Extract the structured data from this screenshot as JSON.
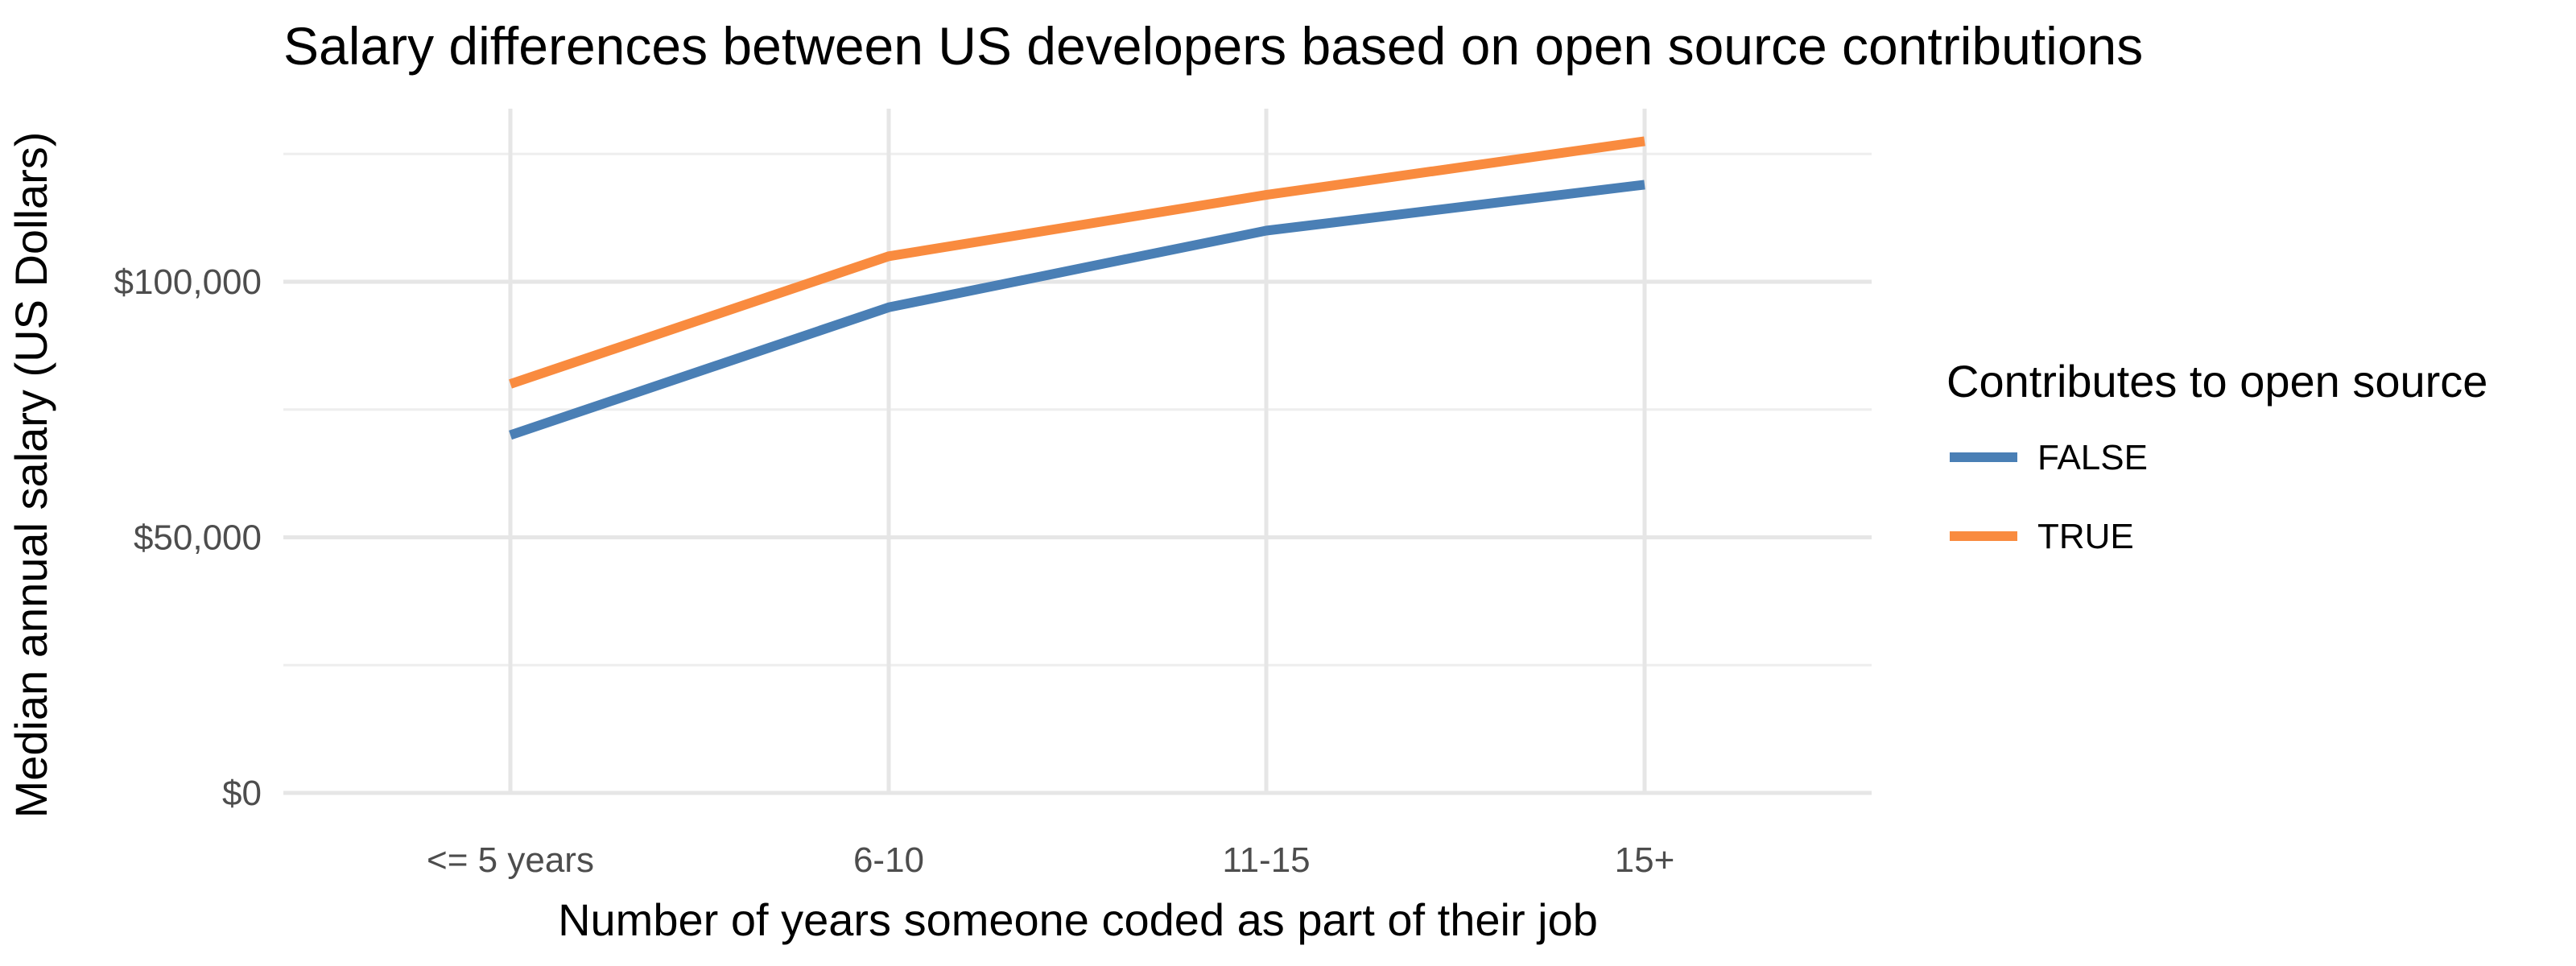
{
  "chart_data": {
    "type": "line",
    "title": "Salary differences between US developers based on open source contributions",
    "xlabel": "Number of years someone coded as part of their job",
    "ylabel": "Median annual salary (US Dollars)",
    "categories": [
      "<= 5 years",
      "6-10",
      "11-15",
      "15+"
    ],
    "ylim": [
      0,
      130000
    ],
    "y_ticks": [
      {
        "value": 0,
        "label": "$0"
      },
      {
        "value": 50000,
        "label": "$50,000"
      },
      {
        "value": 100000,
        "label": "$100,000"
      }
    ],
    "y_minor_ticks": [
      25000,
      75000,
      125000
    ],
    "grid": true,
    "legend": {
      "title": "Contributes to open source",
      "position": "right"
    },
    "series": [
      {
        "name": "FALSE",
        "color": "#4a7fb5",
        "values": [
          70000,
          95000,
          110000,
          119000
        ]
      },
      {
        "name": "TRUE",
        "color": "#f98b3f",
        "values": [
          80000,
          105000,
          117000,
          127500
        ]
      }
    ]
  }
}
